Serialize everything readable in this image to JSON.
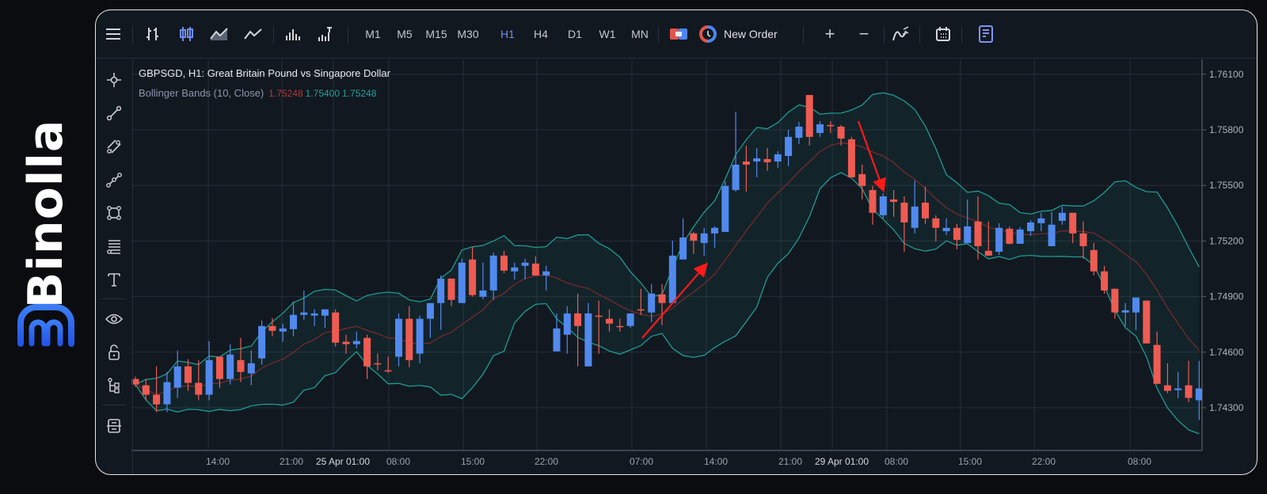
{
  "brand": {
    "name": "Binolla",
    "color": "#2f6bf0"
  },
  "toolbar": {
    "menu_icon": "hamburger-icon",
    "chart_types": [
      "bar-chart-icon",
      "candlestick-icon",
      "area-chart-icon",
      "line-chart-icon"
    ],
    "volume_icons": [
      "volume-icon",
      "tick-volume-icon"
    ],
    "timeframes": [
      "M1",
      "M5",
      "M15",
      "M30",
      "H1",
      "H4",
      "D1",
      "W1",
      "MN"
    ],
    "active_timeframe": "H1",
    "new_order_label": "New Order",
    "zoom_in": "+",
    "zoom_out": "−"
  },
  "left_tools": [
    "crosshair-icon",
    "trend-line-icon",
    "parallel-channel-icon",
    "polyline-icon",
    "rectangle-icon",
    "fibonacci-icon",
    "text-icon",
    "eye-icon",
    "unlock-icon",
    "object-tree-icon",
    "data-window-icon"
  ],
  "legend": {
    "title": "GBPSGD, H1: Great Britain Pound vs Singapore Dollar",
    "indicator": "Bollinger Bands (10, Close)",
    "values": [
      "1.75248",
      "1.75400",
      "1.75248"
    ]
  },
  "colors": {
    "up": "#5189ee",
    "down": "#ef5b52",
    "band": "#1f9b91",
    "mid": "#7b2b2b",
    "arrow": "#ff1a1a",
    "background": "#121820",
    "grid": "#262e39"
  },
  "chart_data": {
    "type": "candlestick",
    "symbol": "GBPSGD",
    "timeframe": "H1",
    "indicator": {
      "name": "Bollinger Bands",
      "period": 10,
      "source": "Close"
    },
    "y_ticks": [
      "1.76100",
      "1.75800",
      "1.75500",
      "1.75200",
      "1.74900",
      "1.74600",
      "1.74300"
    ],
    "ylim": [
      1.7417,
      1.7625
    ],
    "x_ticks": [
      "14:00",
      "21:00",
      "25 Apr 01:00",
      "08:00",
      "15:00",
      "22:00",
      "07:00",
      "14:00",
      "21:00",
      "29 Apr 01:00",
      "08:00",
      "15:00",
      "22:00",
      "08:00"
    ],
    "grid": true,
    "ohlc_columns": [
      "open",
      "high",
      "low",
      "close"
    ],
    "candles": [
      [
        1.74455,
        1.74468,
        1.74412,
        1.74425
      ],
      [
        1.74421,
        1.74455,
        1.7434,
        1.7437
      ],
      [
        1.7437,
        1.74523,
        1.74276,
        1.74318
      ],
      [
        1.74318,
        1.74493,
        1.74276,
        1.74438
      ],
      [
        1.74408,
        1.74609,
        1.74353,
        1.74523
      ],
      [
        1.74523,
        1.74562,
        1.74391,
        1.74434
      ],
      [
        1.74434,
        1.74557,
        1.7434,
        1.7437
      ],
      [
        1.7437,
        1.7466,
        1.7434,
        1.74557
      ],
      [
        1.74575,
        1.74575,
        1.74408,
        1.74455
      ],
      [
        1.74455,
        1.74643,
        1.74425,
        1.74587
      ],
      [
        1.74557,
        1.74677,
        1.74438,
        1.74493
      ],
      [
        1.74485,
        1.74609,
        1.74421,
        1.7454
      ],
      [
        1.74566,
        1.74771,
        1.74532,
        1.74741
      ],
      [
        1.74741,
        1.74784,
        1.74686,
        1.74715
      ],
      [
        1.74711,
        1.74754,
        1.74656,
        1.74728
      ],
      [
        1.74724,
        1.74873,
        1.74686,
        1.74801
      ],
      [
        1.74801,
        1.74933,
        1.74775,
        1.74814
      ],
      [
        1.74797,
        1.74831,
        1.74741,
        1.74809
      ],
      [
        1.74797,
        1.74831,
        1.74732,
        1.74831
      ],
      [
        1.74814,
        1.74831,
        1.7463,
        1.74651
      ],
      [
        1.74656,
        1.74694,
        1.74592,
        1.74643
      ],
      [
        1.74643,
        1.74711,
        1.74621,
        1.7466
      ],
      [
        1.74677,
        1.74694,
        1.74455,
        1.74523
      ],
      [
        1.7454,
        1.74592,
        1.74502,
        1.74536
      ],
      [
        1.74502,
        1.74575,
        1.74489,
        1.74498
      ],
      [
        1.74575,
        1.74809,
        1.74523,
        1.7478
      ],
      [
        1.7478,
        1.74848,
        1.74519,
        1.74557
      ],
      [
        1.74592,
        1.74797,
        1.7454,
        1.7478
      ],
      [
        1.7478,
        1.74865,
        1.74677,
        1.74865
      ],
      [
        1.74865,
        1.75014,
        1.7472,
        1.74997
      ],
      [
        1.74997,
        1.74997,
        1.74848,
        1.74882
      ],
      [
        1.74865,
        1.75104,
        1.74865,
        1.75083
      ],
      [
        1.751,
        1.75168,
        1.74899,
        1.74908
      ],
      [
        1.74899,
        1.75083,
        1.74886,
        1.74933
      ],
      [
        1.74933,
        1.75138,
        1.74882,
        1.75121
      ],
      [
        1.75121,
        1.75147,
        1.75027,
        1.7504
      ],
      [
        1.75036,
        1.75083,
        1.74993,
        1.75057
      ],
      [
        1.75066,
        1.75104,
        1.74993,
        1.75083
      ],
      [
        1.75078,
        1.75117,
        1.75014,
        1.75014
      ],
      [
        1.75014,
        1.75066,
        1.74933,
        1.75036
      ],
      [
        1.74604,
        1.74809,
        1.74604,
        1.74728
      ],
      [
        1.74694,
        1.74848,
        1.74592,
        1.74809
      ],
      [
        1.74809,
        1.74916,
        1.74523,
        1.74741
      ],
      [
        1.74523,
        1.74865,
        1.74523,
        1.74809
      ],
      [
        1.74797,
        1.74878,
        1.74592,
        1.74793
      ],
      [
        1.7478,
        1.74831,
        1.74711,
        1.74754
      ],
      [
        1.74741,
        1.7478,
        1.74711,
        1.74737
      ],
      [
        1.74741,
        1.74809,
        1.74732,
        1.74809
      ],
      [
        1.74831,
        1.74942,
        1.74801,
        1.74827
      ],
      [
        1.74814,
        1.74967,
        1.74762,
        1.74916
      ],
      [
        1.74912,
        1.74967,
        1.74745,
        1.74865
      ],
      [
        1.74865,
        1.75202,
        1.74865,
        1.75121
      ],
      [
        1.751,
        1.75322,
        1.751,
        1.75219
      ],
      [
        1.75241,
        1.75249,
        1.7513,
        1.75202
      ],
      [
        1.75189,
        1.75271,
        1.75121,
        1.75241
      ],
      [
        1.75241,
        1.75279,
        1.75164,
        1.75271
      ],
      [
        1.75249,
        1.75522,
        1.75249,
        1.75497
      ],
      [
        1.75475,
        1.75898,
        1.75467,
        1.75612
      ],
      [
        1.75629,
        1.75715,
        1.75467,
        1.75612
      ],
      [
        1.75629,
        1.75702,
        1.75544,
        1.75646
      ],
      [
        1.75642,
        1.75702,
        1.75578,
        1.75625
      ],
      [
        1.75629,
        1.75685,
        1.75595,
        1.75668
      ],
      [
        1.75659,
        1.758,
        1.75604,
        1.75762
      ],
      [
        1.75757,
        1.75843,
        1.75723,
        1.75817
      ],
      [
        1.75988,
        1.75988,
        1.75715,
        1.75762
      ],
      [
        1.75783,
        1.75847,
        1.75762,
        1.7583
      ],
      [
        1.75826,
        1.75847,
        1.75783,
        1.75822
      ],
      [
        1.75817,
        1.75826,
        1.75715,
        1.75753
      ],
      [
        1.75749,
        1.75762,
        1.75544,
        1.75544
      ],
      [
        1.75561,
        1.75612,
        1.75424,
        1.75497
      ],
      [
        1.75475,
        1.75497,
        1.75288,
        1.75352
      ],
      [
        1.75339,
        1.75458,
        1.75322,
        1.75441
      ],
      [
        1.75424,
        1.75475,
        1.7533,
        1.75411
      ],
      [
        1.75407,
        1.75441,
        1.75142,
        1.753
      ],
      [
        1.75271,
        1.75527,
        1.75241,
        1.75386
      ],
      [
        1.75407,
        1.75493,
        1.75292,
        1.75322
      ],
      [
        1.75322,
        1.75339,
        1.75198,
        1.75271
      ],
      [
        1.75253,
        1.75322,
        1.75232,
        1.75271
      ],
      [
        1.75271,
        1.75292,
        1.75155,
        1.75206
      ],
      [
        1.75189,
        1.75424,
        1.75189,
        1.75279
      ],
      [
        1.75305,
        1.75441,
        1.751,
        1.75172
      ],
      [
        1.75147,
        1.75305,
        1.75121,
        1.75121
      ],
      [
        1.75142,
        1.75296,
        1.75125,
        1.75271
      ],
      [
        1.75266,
        1.75279,
        1.75181,
        1.75185
      ],
      [
        1.75185,
        1.75275,
        1.75185,
        1.75262
      ],
      [
        1.75253,
        1.75313,
        1.75228,
        1.753
      ],
      [
        1.75296,
        1.75352,
        1.75253,
        1.75322
      ],
      [
        1.75172,
        1.75356,
        1.75172,
        1.75288
      ],
      [
        1.75309,
        1.75386,
        1.75288,
        1.75352
      ],
      [
        1.75352,
        1.75352,
        1.75189,
        1.75241
      ],
      [
        1.75241,
        1.75305,
        1.75104,
        1.75172
      ],
      [
        1.75151,
        1.75189,
        1.75014,
        1.75036
      ],
      [
        1.75036,
        1.75066,
        1.74916,
        1.74933
      ],
      [
        1.74942,
        1.74942,
        1.7478,
        1.74814
      ],
      [
        1.74814,
        1.74865,
        1.74741,
        1.74826
      ],
      [
        1.74814,
        1.74895,
        1.7472,
        1.74895
      ],
      [
        1.74878,
        1.74878,
        1.74647,
        1.74647
      ],
      [
        1.74639,
        1.74711,
        1.74429,
        1.74429
      ],
      [
        1.74421,
        1.7454,
        1.74378,
        1.74391
      ],
      [
        1.74395,
        1.74493,
        1.74353,
        1.74404
      ],
      [
        1.74421,
        1.74553,
        1.74331,
        1.74353
      ],
      [
        1.7434,
        1.74553,
        1.74233,
        1.74404
      ]
    ],
    "annotations": [
      {
        "type": "arrow",
        "direction": "up",
        "color": "#ff1a1a"
      },
      {
        "type": "arrow",
        "direction": "down",
        "color": "#ff1a1a"
      }
    ]
  }
}
